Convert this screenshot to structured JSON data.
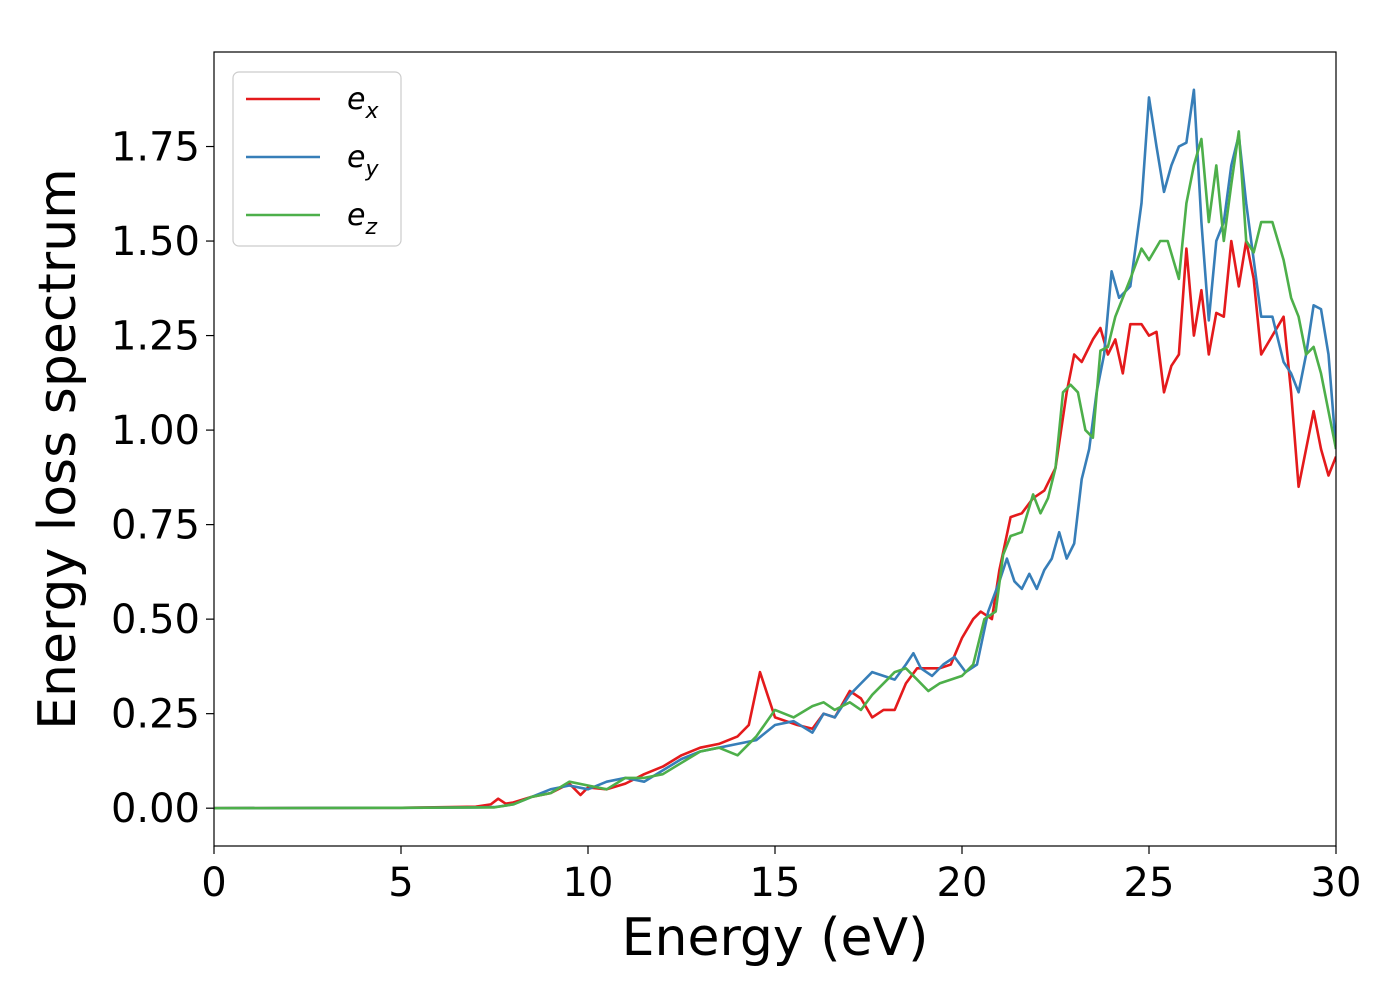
{
  "chart_data": {
    "type": "line",
    "xlabel": "Energy (eV)",
    "ylabel": "Energy loss spectrum",
    "xlim": [
      0,
      30
    ],
    "ylim": [
      -0.1,
      2.0
    ],
    "xticks": [
      0,
      5,
      10,
      15,
      20,
      25,
      30
    ],
    "xtick_labels": [
      "0",
      "5",
      "10",
      "15",
      "20",
      "25",
      "30"
    ],
    "yticks": [
      0.0,
      0.25,
      0.5,
      0.75,
      1.0,
      1.25,
      1.5,
      1.75
    ],
    "ytick_labels": [
      "0.00",
      "0.25",
      "0.50",
      "0.75",
      "1.00",
      "1.25",
      "1.50",
      "1.75"
    ],
    "grid": false,
    "legend_position": "top-left",
    "series": [
      {
        "name": "e",
        "subscript": "x",
        "color": "#e41a1c",
        "x": [
          0,
          5,
          7.0,
          7.4,
          7.6,
          7.8,
          8.0,
          8.5,
          9.0,
          9.5,
          9.8,
          10.0,
          10.5,
          11.0,
          11.5,
          12.0,
          12.5,
          13.0,
          13.5,
          14.0,
          14.3,
          14.6,
          14.8,
          15.0,
          15.3,
          15.6,
          16.0,
          16.3,
          16.6,
          17.0,
          17.3,
          17.6,
          17.9,
          18.2,
          18.5,
          18.8,
          19.1,
          19.4,
          19.7,
          20.0,
          20.3,
          20.5,
          20.8,
          21.0,
          21.3,
          21.6,
          21.9,
          22.2,
          22.5,
          22.8,
          23.0,
          23.2,
          23.5,
          23.7,
          23.9,
          24.1,
          24.3,
          24.5,
          24.8,
          25.0,
          25.2,
          25.4,
          25.6,
          25.8,
          26.0,
          26.2,
          26.4,
          26.6,
          26.8,
          27.0,
          27.2,
          27.4,
          27.6,
          27.8,
          28.0,
          28.3,
          28.6,
          28.8,
          29.0,
          29.2,
          29.4,
          29.6,
          29.8,
          30.0
        ],
        "y": [
          0.0,
          0.001,
          0.004,
          0.01,
          0.025,
          0.012,
          0.015,
          0.03,
          0.04,
          0.065,
          0.035,
          0.055,
          0.05,
          0.065,
          0.09,
          0.11,
          0.14,
          0.16,
          0.17,
          0.19,
          0.22,
          0.36,
          0.3,
          0.24,
          0.23,
          0.22,
          0.21,
          0.25,
          0.24,
          0.31,
          0.29,
          0.24,
          0.26,
          0.26,
          0.33,
          0.37,
          0.37,
          0.37,
          0.38,
          0.45,
          0.5,
          0.52,
          0.5,
          0.63,
          0.77,
          0.78,
          0.82,
          0.84,
          0.9,
          1.1,
          1.2,
          1.18,
          1.24,
          1.27,
          1.2,
          1.24,
          1.15,
          1.28,
          1.28,
          1.25,
          1.26,
          1.1,
          1.17,
          1.2,
          1.48,
          1.25,
          1.37,
          1.2,
          1.31,
          1.3,
          1.5,
          1.38,
          1.5,
          1.4,
          1.2,
          1.25,
          1.3,
          1.1,
          0.85,
          0.95,
          1.05,
          0.95,
          0.88,
          0.93
        ]
      },
      {
        "name": "e",
        "subscript": "y",
        "color": "#377eb8",
        "x": [
          0,
          5,
          7.0,
          7.5,
          8.0,
          8.5,
          9.0,
          9.5,
          10.0,
          10.5,
          11.0,
          11.5,
          12.0,
          12.5,
          13.0,
          13.5,
          14.0,
          14.5,
          15.0,
          15.5,
          16.0,
          16.3,
          16.6,
          17.0,
          17.3,
          17.6,
          17.9,
          18.2,
          18.5,
          18.7,
          18.9,
          19.2,
          19.5,
          19.8,
          20.1,
          20.4,
          20.7,
          21.0,
          21.2,
          21.4,
          21.6,
          21.8,
          22.0,
          22.2,
          22.4,
          22.6,
          22.8,
          23.0,
          23.2,
          23.4,
          23.6,
          23.8,
          24.0,
          24.2,
          24.5,
          24.8,
          25.0,
          25.2,
          25.4,
          25.6,
          25.8,
          26.0,
          26.2,
          26.4,
          26.6,
          26.8,
          27.0,
          27.2,
          27.4,
          27.6,
          27.8,
          28.0,
          28.3,
          28.6,
          28.8,
          29.0,
          29.2,
          29.4,
          29.6,
          29.8,
          30.0
        ],
        "y": [
          0.0,
          0.001,
          0.002,
          0.003,
          0.01,
          0.03,
          0.05,
          0.06,
          0.05,
          0.07,
          0.08,
          0.07,
          0.1,
          0.13,
          0.15,
          0.16,
          0.17,
          0.18,
          0.22,
          0.23,
          0.2,
          0.25,
          0.24,
          0.3,
          0.33,
          0.36,
          0.35,
          0.34,
          0.38,
          0.41,
          0.37,
          0.35,
          0.38,
          0.4,
          0.36,
          0.38,
          0.52,
          0.6,
          0.66,
          0.6,
          0.58,
          0.62,
          0.58,
          0.63,
          0.66,
          0.73,
          0.66,
          0.7,
          0.87,
          0.95,
          1.1,
          1.2,
          1.42,
          1.35,
          1.38,
          1.6,
          1.88,
          1.75,
          1.63,
          1.7,
          1.75,
          1.76,
          1.9,
          1.55,
          1.29,
          1.5,
          1.55,
          1.7,
          1.78,
          1.6,
          1.45,
          1.3,
          1.3,
          1.18,
          1.15,
          1.1,
          1.2,
          1.33,
          1.32,
          1.2,
          0.95
        ]
      },
      {
        "name": "e",
        "subscript": "z",
        "color": "#4daf4a",
        "x": [
          0,
          5,
          7.0,
          7.5,
          8.0,
          8.5,
          9.0,
          9.5,
          10.0,
          10.5,
          11.0,
          11.5,
          12.0,
          12.5,
          13.0,
          13.5,
          14.0,
          14.5,
          15.0,
          15.5,
          16.0,
          16.3,
          16.6,
          17.0,
          17.3,
          17.6,
          17.9,
          18.2,
          18.5,
          18.8,
          19.1,
          19.4,
          19.7,
          20.0,
          20.3,
          20.6,
          20.9,
          21.1,
          21.3,
          21.6,
          21.9,
          22.1,
          22.3,
          22.5,
          22.7,
          22.9,
          23.1,
          23.3,
          23.5,
          23.7,
          23.9,
          24.1,
          24.3,
          24.5,
          24.8,
          25.0,
          25.3,
          25.5,
          25.8,
          26.0,
          26.2,
          26.4,
          26.6,
          26.8,
          27.0,
          27.2,
          27.4,
          27.6,
          27.8,
          28.0,
          28.3,
          28.6,
          28.8,
          29.0,
          29.2,
          29.4,
          29.6,
          29.8,
          30.0
        ],
        "y": [
          0.0,
          0.001,
          0.002,
          0.002,
          0.01,
          0.03,
          0.04,
          0.07,
          0.06,
          0.05,
          0.08,
          0.08,
          0.09,
          0.12,
          0.15,
          0.16,
          0.14,
          0.19,
          0.26,
          0.24,
          0.27,
          0.28,
          0.26,
          0.28,
          0.26,
          0.3,
          0.33,
          0.36,
          0.37,
          0.34,
          0.31,
          0.33,
          0.34,
          0.35,
          0.38,
          0.5,
          0.52,
          0.67,
          0.72,
          0.73,
          0.83,
          0.78,
          0.82,
          0.9,
          1.1,
          1.12,
          1.1,
          1.0,
          0.98,
          1.21,
          1.22,
          1.3,
          1.35,
          1.4,
          1.48,
          1.45,
          1.5,
          1.5,
          1.4,
          1.6,
          1.7,
          1.77,
          1.55,
          1.7,
          1.5,
          1.65,
          1.79,
          1.5,
          1.47,
          1.55,
          1.55,
          1.45,
          1.35,
          1.3,
          1.2,
          1.22,
          1.15,
          1.05,
          0.95
        ]
      }
    ]
  }
}
